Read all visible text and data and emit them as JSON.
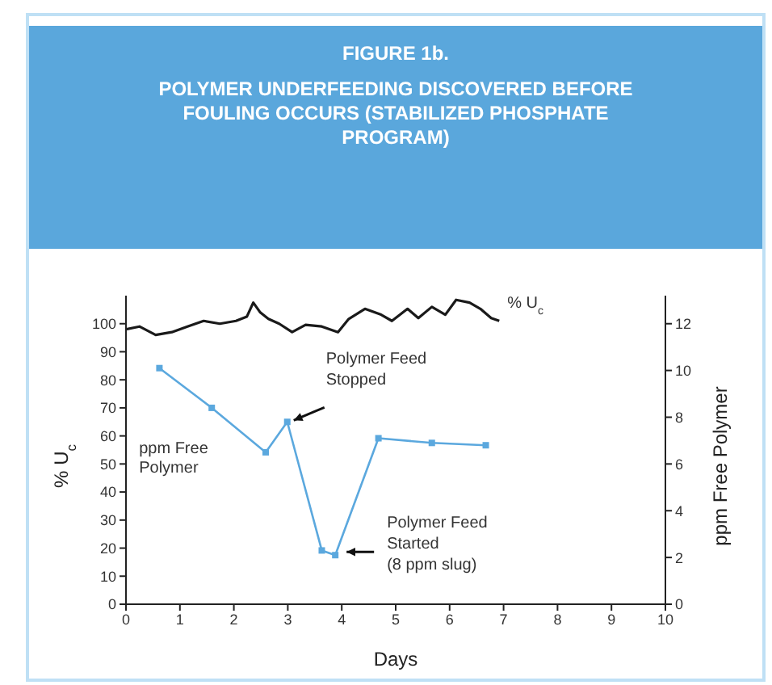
{
  "chart_data": {
    "type": "line",
    "title": "FIGURE 1b.",
    "subtitle": "POLYMER UNDERFEEDING DISCOVERED BEFORE FOULING OCCURS (STABILIZED PHOSPHATE PROGRAM)",
    "xlabel": "Days",
    "ylabel": "% U$_{c}$",
    "y2label": "ppm Free Polymer",
    "xlim": [
      0,
      10
    ],
    "xticks": [
      0,
      1,
      2,
      3,
      4,
      5,
      6,
      7,
      8,
      9,
      10
    ],
    "ylim": [
      0,
      110
    ],
    "yticks": [
      0,
      10,
      20,
      30,
      40,
      50,
      60,
      70,
      80,
      90,
      100
    ],
    "y2lim": [
      0,
      13.2
    ],
    "y2ticks": [
      0,
      2,
      4,
      6,
      8,
      10,
      12
    ],
    "series": [
      {
        "name": "% U$_{c}$",
        "color": "#1a1a1a",
        "marker": "none",
        "x": [
          0,
          0.25,
          0.55,
          0.85,
          1.14,
          1.44,
          1.74,
          2.04,
          2.24,
          2.36,
          2.49,
          2.64,
          2.84,
          3.08,
          3.33,
          3.63,
          3.93,
          4.13,
          4.43,
          4.73,
          4.93,
          5.22,
          5.42,
          5.67,
          5.92,
          6.12,
          6.37,
          6.57,
          6.77,
          6.92
        ],
        "values": [
          98,
          99,
          96,
          97,
          99,
          101,
          100,
          101,
          102.5,
          107.5,
          104,
          101.7,
          100,
          97,
          99.6,
          99,
          97,
          101.7,
          105.3,
          103.2,
          101,
          105.3,
          102,
          106,
          103.2,
          108.5,
          107.5,
          105.3,
          102,
          101
        ]
      },
      {
        "name": "ppm Free Polymer",
        "color": "#5ba8de",
        "marker": "square",
        "axis": "y2",
        "x": [
          0.62,
          1.59,
          2.59,
          2.99,
          3.63,
          3.88,
          4.68,
          5.67,
          6.67
        ],
        "values": [
          10.1,
          8.4,
          6.5,
          7.8,
          2.3,
          2.1,
          7.1,
          6.9,
          6.8
        ]
      }
    ],
    "annotations": [
      "Polymer Feed Stopped",
      "Polymer Feed Started (8 ppm slug)"
    ]
  }
}
